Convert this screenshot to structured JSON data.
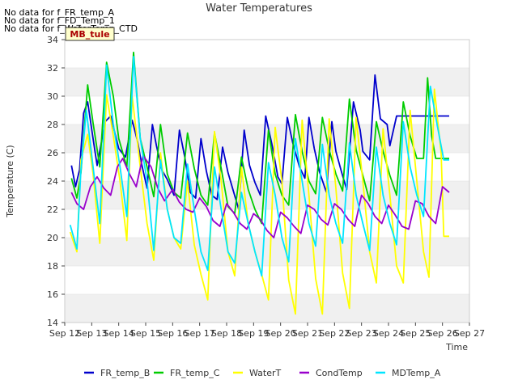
{
  "notes": [
    "No data for f_FR_temp_A",
    "No data for f_FD_Temp_1",
    "No data for f_WaterTemp_CTD"
  ],
  "site_tag": "MB_tule",
  "chart_data": {
    "type": "line",
    "title": "Water Temperatures",
    "xlabel": "Time",
    "ylabel": "Temperature (C)",
    "xlim": [
      12,
      27
    ],
    "ylim": [
      14,
      34
    ],
    "x_tick_labels": [
      "Sep 12",
      "Sep 13",
      "Sep 14",
      "Sep 15",
      "Sep 16",
      "Sep 17",
      "Sep 18",
      "Sep 19",
      "Sep 20",
      "Sep 21",
      "Sep 22",
      "Sep 23",
      "Sep 24",
      "Sep 25",
      "Sep 26",
      "Sep 27"
    ],
    "y_ticks": [
      14,
      16,
      18,
      20,
      22,
      24,
      26,
      28,
      30,
      32,
      34
    ],
    "legend_position": "bottom",
    "series": [
      {
        "name": "FR_temp_B",
        "color": "#0000cc",
        "x": [
          12.25,
          12.4,
          12.55,
          12.7,
          12.85,
          13.05,
          13.2,
          13.5,
          13.7,
          14.0,
          14.25,
          14.5,
          14.7,
          14.85,
          15.05,
          15.25,
          15.4,
          15.6,
          15.8,
          16.05,
          16.25,
          16.45,
          16.65,
          16.85,
          17.05,
          17.25,
          17.45,
          17.65,
          17.85,
          18.05,
          18.25,
          18.45,
          18.65,
          18.85,
          19.05,
          19.25,
          19.45,
          19.7,
          19.9,
          20.05,
          20.25,
          20.45,
          20.7,
          20.9,
          21.05,
          21.25,
          21.45,
          21.7,
          21.9,
          22.05,
          22.25,
          22.45,
          22.7,
          22.95,
          23.05,
          23.3,
          23.5,
          23.7,
          23.95,
          24.05,
          24.3,
          24.5,
          24.7,
          24.95,
          25.05,
          25.3,
          25.5,
          25.7,
          25.95,
          26.05,
          26.25
        ],
        "y": [
          25.1,
          23.6,
          24.8,
          28.8,
          29.6,
          27.0,
          25.1,
          28.2,
          28.6,
          26.3,
          25.7,
          28.3,
          26.8,
          25.2,
          23.5,
          28.0,
          26.5,
          24.8,
          24.1,
          23.0,
          27.6,
          25.7,
          23.2,
          22.8,
          27.0,
          24.7,
          23.0,
          22.7,
          26.4,
          24.6,
          23.3,
          22.0,
          27.6,
          25.1,
          23.9,
          23.0,
          28.6,
          26.4,
          24.3,
          23.8,
          28.5,
          26.7,
          25.0,
          24.2,
          28.5,
          26.3,
          24.6,
          23.2,
          28.2,
          26.1,
          24.7,
          23.4,
          29.6,
          27.6,
          26.1,
          25.5,
          31.5,
          28.4,
          28.0,
          26.5,
          28.6,
          28.6,
          28.6,
          28.6,
          28.6,
          28.6,
          28.6,
          28.6,
          28.6,
          28.6,
          28.6
        ]
      },
      {
        "name": "FR_temp_C",
        "color": "#00cc00",
        "x": [
          12.25,
          12.45,
          12.6,
          12.85,
          13.05,
          13.3,
          13.55,
          13.8,
          14.0,
          14.3,
          14.55,
          14.8,
          15.05,
          15.3,
          15.55,
          15.8,
          16.05,
          16.3,
          16.55,
          16.8,
          17.05,
          17.3,
          17.55,
          17.8,
          18.05,
          18.3,
          18.55,
          18.8,
          19.05,
          19.3,
          19.55,
          19.8,
          20.05,
          20.3,
          20.55,
          20.8,
          21.05,
          21.3,
          21.55,
          21.8,
          22.05,
          22.3,
          22.55,
          22.8,
          23.05,
          23.3,
          23.55,
          23.8,
          24.05,
          24.3,
          24.55,
          24.8,
          25.05,
          25.3,
          25.45,
          25.6,
          25.75,
          25.9,
          26.05,
          26.25
        ],
        "y": [
          24.2,
          22.8,
          24.6,
          30.8,
          28.1,
          25.0,
          32.4,
          30.0,
          27.0,
          25.0,
          33.1,
          27.0,
          25.0,
          22.9,
          28.0,
          24.5,
          23.2,
          22.8,
          27.4,
          24.9,
          23.0,
          22.3,
          27.4,
          24.9,
          22.2,
          21.7,
          25.7,
          23.4,
          22.0,
          21.0,
          27.6,
          24.5,
          23.0,
          22.3,
          28.7,
          26.1,
          24.0,
          23.1,
          28.5,
          26.2,
          24.5,
          23.3,
          29.8,
          26.2,
          24.4,
          22.6,
          28.2,
          26.1,
          24.4,
          23.0,
          29.6,
          27.2,
          25.6,
          25.6,
          31.3,
          27.2,
          25.6,
          25.6,
          25.6,
          25.6
        ]
      },
      {
        "name": "WaterT",
        "color": "#ffff00",
        "x": [
          12.2,
          12.45,
          12.6,
          12.85,
          13.05,
          13.3,
          13.55,
          13.8,
          14.05,
          14.3,
          14.5,
          14.8,
          15.05,
          15.3,
          15.55,
          15.8,
          16.05,
          16.3,
          16.55,
          16.8,
          17.05,
          17.3,
          17.55,
          17.8,
          18.05,
          18.3,
          18.55,
          18.8,
          19.05,
          19.3,
          19.55,
          19.8,
          20.05,
          20.3,
          20.55,
          20.8,
          21.05,
          21.3,
          21.55,
          21.8,
          22.05,
          22.3,
          22.55,
          22.8,
          23.05,
          23.3,
          23.55,
          23.8,
          24.05,
          24.3,
          24.55,
          24.8,
          25.05,
          25.3,
          25.5,
          25.7,
          25.95,
          26.05,
          26.25
        ],
        "y": [
          20.4,
          19.0,
          25.5,
          27.3,
          24.5,
          19.6,
          30.1,
          27.2,
          24.0,
          19.8,
          30.0,
          25.0,
          21.0,
          18.4,
          26.0,
          22.0,
          20.0,
          19.2,
          24.0,
          19.5,
          17.4,
          15.6,
          27.5,
          24.0,
          19.0,
          17.3,
          25.0,
          21.0,
          19.0,
          17.4,
          15.6,
          27.8,
          24.0,
          17.0,
          14.6,
          28.3,
          23.0,
          17.1,
          14.6,
          28.4,
          23.5,
          17.5,
          15.0,
          28.5,
          24.0,
          19.0,
          16.8,
          27.7,
          23.0,
          18.0,
          16.8,
          29.0,
          24.0,
          19.0,
          17.2,
          30.5,
          26.0,
          20.1,
          20.1
        ]
      },
      {
        "name": "CondTemp",
        "color": "#9900cc",
        "x": [
          12.25,
          12.45,
          12.7,
          12.95,
          13.2,
          13.45,
          13.7,
          13.95,
          14.15,
          14.4,
          14.65,
          14.9,
          15.2,
          15.45,
          15.7,
          16.0,
          16.25,
          16.5,
          16.75,
          17.0,
          17.25,
          17.5,
          17.75,
          18.0,
          18.25,
          18.5,
          18.75,
          19.0,
          19.25,
          19.5,
          19.75,
          20.0,
          20.25,
          20.5,
          20.75,
          21.0,
          21.25,
          21.5,
          21.75,
          22.0,
          22.25,
          22.5,
          22.75,
          23.0,
          23.25,
          23.5,
          23.75,
          24.0,
          24.25,
          24.5,
          24.75,
          25.0,
          25.25,
          25.5,
          25.75,
          26.0,
          26.25
        ],
        "y": [
          23.2,
          22.4,
          22.0,
          23.6,
          24.3,
          23.5,
          23.0,
          25.0,
          25.6,
          24.5,
          23.6,
          25.8,
          25.0,
          23.5,
          22.6,
          23.4,
          22.5,
          22.0,
          21.8,
          22.8,
          22.2,
          21.2,
          20.8,
          22.4,
          21.8,
          21.0,
          20.6,
          21.7,
          21.3,
          20.5,
          20.0,
          21.8,
          21.4,
          20.8,
          20.3,
          22.3,
          22.0,
          21.3,
          20.9,
          22.4,
          22.0,
          21.3,
          20.8,
          23.0,
          22.4,
          21.5,
          21.0,
          22.3,
          21.6,
          20.8,
          20.6,
          22.6,
          22.4,
          21.5,
          21.0,
          23.6,
          23.2
        ]
      },
      {
        "name": "MDTemp_A",
        "color": "#00e5ff",
        "x": [
          12.2,
          12.45,
          12.6,
          12.8,
          13.05,
          13.3,
          13.55,
          13.8,
          14.05,
          14.3,
          14.55,
          14.8,
          15.05,
          15.3,
          15.55,
          15.8,
          16.05,
          16.3,
          16.55,
          16.8,
          17.05,
          17.3,
          17.55,
          17.8,
          18.05,
          18.3,
          18.55,
          18.8,
          19.05,
          19.3,
          19.55,
          19.8,
          20.05,
          20.3,
          20.55,
          20.8,
          21.05,
          21.3,
          21.55,
          21.8,
          22.05,
          22.3,
          22.55,
          22.8,
          23.05,
          23.3,
          23.55,
          23.8,
          24.05,
          24.3,
          24.55,
          24.8,
          25.05,
          25.3,
          25.55,
          25.8,
          26.05,
          26.25
        ],
        "y": [
          20.9,
          19.2,
          24.8,
          29.0,
          25.0,
          21.0,
          32.2,
          28.0,
          25.0,
          21.5,
          32.8,
          27.0,
          24.0,
          19.1,
          25.5,
          22.0,
          20.0,
          19.6,
          25.2,
          22.0,
          19.0,
          17.7,
          25.0,
          22.0,
          19.0,
          18.2,
          23.2,
          21.0,
          19.0,
          17.3,
          25.3,
          23.0,
          20.0,
          18.3,
          27.0,
          24.0,
          21.0,
          19.4,
          26.6,
          23.0,
          21.0,
          19.6,
          26.7,
          23.0,
          21.0,
          19.1,
          26.4,
          23.0,
          21.0,
          19.5,
          28.2,
          25.0,
          23.0,
          21.5,
          30.7,
          28.0,
          25.5,
          25.5
        ]
      }
    ]
  }
}
